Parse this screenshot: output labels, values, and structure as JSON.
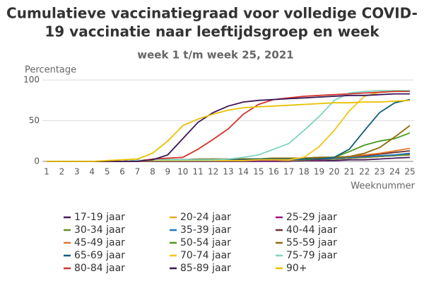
{
  "chart_data": {
    "type": "line",
    "title": [
      "Cumulatieve vaccinatiegraad voor volledige COVID-",
      "19 vaccinatie naar leeftijdsgroep en week"
    ],
    "subtitle": "week 1 t/m week 25, 2021",
    "y_label": "Percentage",
    "x_label": "Weeknummer",
    "categories": [
      "1",
      "2",
      "3",
      "4",
      "5",
      "6",
      "7",
      "8",
      "9",
      "10",
      "11",
      "12",
      "13",
      "14",
      "15",
      "16",
      "17",
      "18",
      "19",
      "20",
      "21",
      "22",
      "23",
      "24",
      "25"
    ],
    "ylim": [
      0,
      100
    ],
    "yticks": [
      0,
      50,
      100
    ],
    "grid": true,
    "series": [
      {
        "name": "17-19 jaar",
        "color": "#4a1a5e",
        "values": [
          0,
          0,
          0,
          0,
          0,
          0,
          0,
          0,
          0,
          0,
          0,
          0,
          0,
          0,
          0,
          0,
          0,
          1,
          1,
          1,
          2,
          2,
          3,
          4,
          5
        ]
      },
      {
        "name": "20-24 jaar",
        "color": "#f0a820",
        "values": [
          0,
          0,
          0,
          0,
          0,
          0,
          1,
          1,
          1,
          1,
          1,
          1,
          1,
          1,
          1,
          1,
          1,
          2,
          2,
          3,
          4,
          5,
          6,
          8,
          10
        ]
      },
      {
        "name": "25-29 jaar",
        "color": "#a0127d",
        "values": [
          0,
          0,
          0,
          0,
          0,
          0,
          1,
          1,
          1,
          1,
          1,
          1,
          1,
          1,
          1,
          1,
          2,
          2,
          2,
          3,
          4,
          5,
          6,
          7,
          9
        ]
      },
      {
        "name": "30-34 jaar",
        "color": "#6b8c1e",
        "values": [
          0,
          0,
          0,
          0,
          0,
          0,
          1,
          1,
          1,
          1,
          1,
          1,
          1,
          1,
          2,
          2,
          2,
          2,
          3,
          3,
          4,
          5,
          6,
          7,
          8
        ]
      },
      {
        "name": "35-39 jaar",
        "color": "#1f78c1",
        "values": [
          0,
          0,
          0,
          0,
          0,
          0,
          1,
          1,
          1,
          1,
          1,
          1,
          2,
          2,
          2,
          2,
          2,
          3,
          3,
          4,
          5,
          6,
          7,
          8,
          10
        ]
      },
      {
        "name": "40-44 jaar",
        "color": "#6b2e2e",
        "values": [
          0,
          0,
          0,
          0,
          0,
          0,
          1,
          2,
          2,
          2,
          2,
          2,
          2,
          3,
          3,
          3,
          3,
          4,
          4,
          5,
          6,
          7,
          9,
          11,
          13
        ]
      },
      {
        "name": "45-49 jaar",
        "color": "#e5782a",
        "values": [
          0,
          0,
          0,
          0,
          0,
          0,
          1,
          2,
          2,
          2,
          2,
          2,
          3,
          3,
          3,
          3,
          4,
          4,
          5,
          5,
          6,
          8,
          10,
          13,
          16
        ]
      },
      {
        "name": "50-54 jaar",
        "color": "#4a9a1a",
        "values": [
          0,
          0,
          0,
          0,
          0,
          0,
          1,
          2,
          2,
          2,
          2,
          3,
          3,
          3,
          3,
          4,
          4,
          4,
          5,
          5,
          12,
          20,
          25,
          28,
          35
        ]
      },
      {
        "name": "55-59 jaar",
        "color": "#8b6d0d",
        "values": [
          0,
          0,
          0,
          0,
          0,
          0,
          1,
          2,
          2,
          2,
          3,
          3,
          3,
          3,
          3,
          4,
          4,
          4,
          5,
          5,
          6,
          10,
          17,
          30,
          44
        ]
      },
      {
        "name": "65-69 jaar",
        "color": "#0e5f7a",
        "values": [
          0,
          0,
          0,
          0,
          0,
          0,
          1,
          2,
          2,
          2,
          2,
          2,
          2,
          2,
          3,
          3,
          3,
          3,
          3,
          5,
          15,
          38,
          60,
          72,
          76
        ]
      },
      {
        "name": "70-74 jaar",
        "color": "#f5c518",
        "values": [
          0,
          0,
          0,
          0,
          0,
          0,
          0,
          1,
          1,
          1,
          1,
          1,
          1,
          1,
          2,
          2,
          2,
          5,
          18,
          38,
          62,
          80,
          85,
          86,
          87
        ]
      },
      {
        "name": "75-79 jaar",
        "color": "#7fd4c1",
        "values": [
          0,
          0,
          0,
          0,
          0,
          0,
          1,
          2,
          2,
          2,
          2,
          2,
          3,
          5,
          8,
          15,
          22,
          38,
          55,
          75,
          84,
          86,
          87,
          87,
          87
        ]
      },
      {
        "name": "80-84 jaar",
        "color": "#d0362a",
        "values": [
          0,
          0,
          0,
          0,
          0,
          0,
          0,
          3,
          4,
          5,
          15,
          27,
          40,
          58,
          70,
          76,
          78,
          80,
          81,
          82,
          83,
          84,
          85,
          86,
          86
        ]
      },
      {
        "name": "85-89 jaar",
        "color": "#3b1557",
        "values": [
          0,
          0,
          0,
          0,
          0,
          0,
          0,
          2,
          8,
          28,
          48,
          60,
          68,
          73,
          75,
          76,
          77,
          78,
          79,
          80,
          81,
          81,
          82,
          83,
          83
        ]
      },
      {
        "name": "90+",
        "color": "#e8c000",
        "values": [
          0,
          0,
          0,
          0,
          1,
          2,
          3,
          10,
          25,
          44,
          52,
          58,
          63,
          66,
          67,
          68,
          69,
          70,
          71,
          72,
          72,
          73,
          73,
          74,
          75
        ]
      }
    ]
  }
}
